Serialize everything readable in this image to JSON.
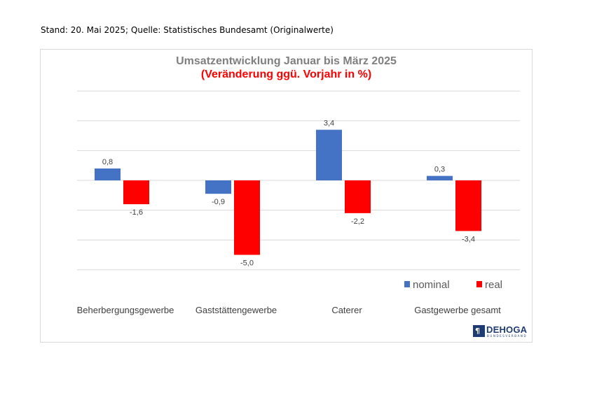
{
  "header": {
    "source_text": "Stand: 20. Mai 2025; Quelle: Statistisches Bundesamt (Originalwerte)"
  },
  "colors": {
    "nominal": "#4472c4",
    "real": "#ff0000",
    "title": "#7f7f7f",
    "subtitle": "#ff0000",
    "gridline": "#d9d9d9",
    "logo": "#1f3b73"
  },
  "chart_data": {
    "type": "bar",
    "title": "Umsatzentwicklung Januar bis März 2025",
    "subtitle": "(Veränderung ggü. Vorjahr in %)",
    "xlabel": "",
    "ylabel": "",
    "categories": [
      "Beherbergungsgewerbe",
      "Gaststättengewerbe",
      "Caterer",
      "Gastgewerbe gesamt"
    ],
    "series": [
      {
        "name": "nominal",
        "values": [
          0.8,
          -0.9,
          3.4,
          0.3
        ],
        "labels": [
          "0,8",
          "-0,9",
          "3,4",
          "0,3"
        ]
      },
      {
        "name": "real",
        "values": [
          -1.6,
          -5.0,
          -2.2,
          -3.4
        ],
        "labels": [
          "-1,6",
          "-5,0",
          "-2,2",
          "-3,4"
        ]
      }
    ],
    "ylim": [
      -6,
      6
    ],
    "grid": true,
    "y_axis_labels_shown": false,
    "legend": "bottom-right"
  },
  "logo": {
    "mark": "¶",
    "name": "DEHOGA",
    "subline": "BUNDESVERBAND"
  }
}
